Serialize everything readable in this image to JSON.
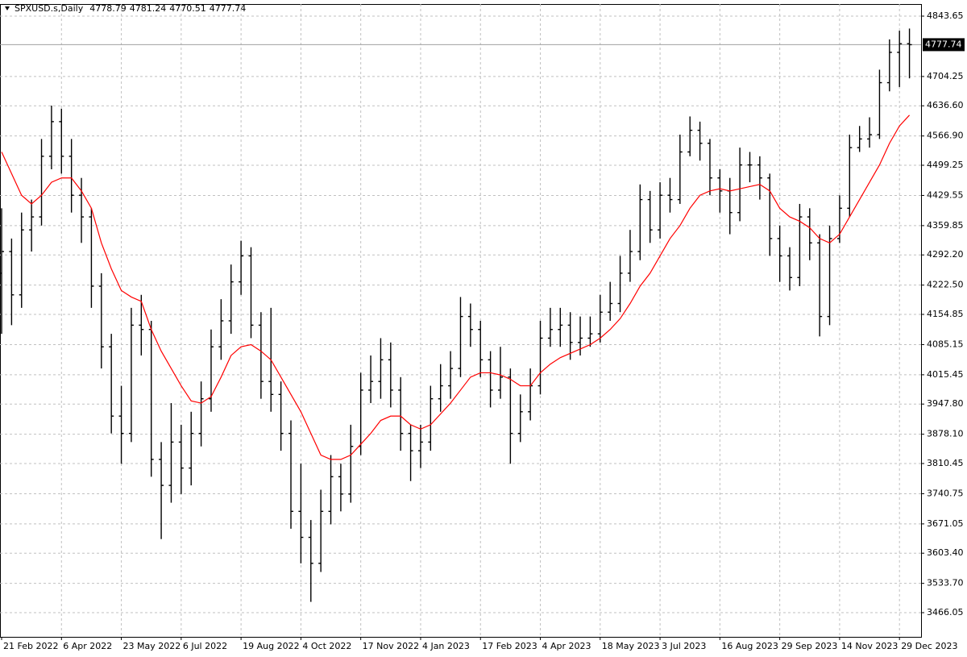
{
  "chart_data": {
    "type": "ohlc",
    "title": "SPXUSD.s,Daily",
    "header_values": [
      4778.79,
      4781.24,
      4770.51,
      4777.74
    ],
    "last_price": 4777.74,
    "bar_color": "#000000",
    "grid": true,
    "categories": [
      "21 Feb 2022",
      null,
      null,
      null,
      null,
      null,
      "6 Apr 2022",
      null,
      null,
      null,
      null,
      null,
      "23 May 2022",
      null,
      null,
      null,
      null,
      null,
      "6 Jul 2022",
      null,
      null,
      null,
      null,
      null,
      "19 Aug 2022",
      null,
      null,
      null,
      null,
      null,
      "4 Oct 2022",
      null,
      null,
      null,
      null,
      null,
      "17 Nov 2022",
      null,
      null,
      null,
      null,
      null,
      "4 Jan 2023",
      null,
      null,
      null,
      null,
      null,
      "17 Feb 2023",
      null,
      null,
      null,
      null,
      null,
      "4 Apr 2023",
      null,
      null,
      null,
      null,
      null,
      "18 May 2023",
      null,
      null,
      null,
      null,
      null,
      "3 Jul 2023",
      null,
      null,
      null,
      null,
      null,
      "16 Aug 2023",
      null,
      null,
      null,
      null,
      null,
      "29 Sep 2023",
      null,
      null,
      null,
      null,
      null,
      "14 Nov 2023",
      null,
      null,
      null,
      null,
      null,
      "29 Dec 2023",
      null
    ],
    "open": [
      4250,
      4300,
      4200,
      4350,
      4380,
      4520,
      4600,
      4520,
      4430,
      4380,
      4220,
      4080,
      3920,
      3880,
      4130,
      4120,
      3820,
      3760,
      3860,
      3800,
      3880,
      3960,
      4080,
      4140,
      4230,
      4290,
      4130,
      4000,
      3970,
      3880,
      3700,
      3640,
      3580,
      3700,
      3780,
      3740,
      3850,
      3980,
      4000,
      4050,
      3980,
      3880,
      3840,
      3860,
      3960,
      3990,
      4030,
      4150,
      4120,
      4050,
      3980,
      4010,
      3880,
      3930,
      3990,
      4100,
      4120,
      4130,
      4090,
      4100,
      4110,
      4160,
      4180,
      4250,
      4300,
      4420,
      4350,
      4430,
      4420,
      4530,
      4580,
      4550,
      4470,
      4440,
      4390,
      4500,
      4500,
      4470,
      4330,
      4290,
      4240,
      4380,
      4320,
      4150,
      4330,
      4400,
      4540,
      4560,
      4570,
      4690,
      4760,
      4780
    ],
    "high": [
      4400,
      4330,
      4390,
      4420,
      4560,
      4637,
      4630,
      4560,
      4470,
      4400,
      4250,
      4110,
      3990,
      4170,
      4200,
      4140,
      3860,
      3950,
      3900,
      3930,
      4000,
      4120,
      4190,
      4270,
      4325,
      4310,
      4160,
      4170,
      4000,
      3910,
      3810,
      3680,
      3750,
      3830,
      3810,
      3900,
      4020,
      4060,
      4100,
      4090,
      4010,
      3900,
      3900,
      3990,
      4040,
      4070,
      4195,
      4180,
      4140,
      4070,
      4080,
      4030,
      3970,
      4030,
      4140,
      4170,
      4170,
      4160,
      4150,
      4150,
      4200,
      4230,
      4290,
      4350,
      4455,
      4440,
      4460,
      4470,
      4570,
      4612,
      4600,
      4560,
      4490,
      4470,
      4540,
      4530,
      4520,
      4480,
      4360,
      4310,
      4410,
      4400,
      4340,
      4360,
      4430,
      4570,
      4590,
      4610,
      4720,
      4790,
      4810,
      4815
    ],
    "low": [
      4110,
      4130,
      4170,
      4300,
      4360,
      4490,
      4480,
      4390,
      4320,
      4170,
      4030,
      3880,
      3810,
      3860,
      4060,
      3780,
      3636,
      3720,
      3740,
      3760,
      3850,
      3930,
      4050,
      4110,
      4200,
      4100,
      3960,
      3930,
      3840,
      3660,
      3580,
      3491,
      3560,
      3670,
      3700,
      3720,
      3830,
      3950,
      3960,
      3940,
      3840,
      3770,
      3800,
      3840,
      3930,
      3960,
      4010,
      4080,
      4010,
      3940,
      3960,
      3810,
      3860,
      3910,
      3970,
      4080,
      4080,
      4050,
      4060,
      4080,
      4090,
      4140,
      4160,
      4230,
      4280,
      4320,
      4330,
      4390,
      4410,
      4520,
      4510,
      4430,
      4390,
      4340,
      4370,
      4460,
      4420,
      4290,
      4230,
      4210,
      4220,
      4280,
      4104,
      4130,
      4320,
      4380,
      4530,
      4540,
      4560,
      4670,
      4680,
      4700
    ],
    "close": [
      4300,
      4200,
      4350,
      4380,
      4520,
      4600,
      4520,
      4430,
      4380,
      4220,
      4080,
      3920,
      3880,
      4130,
      4120,
      3820,
      3760,
      3860,
      3800,
      3880,
      3960,
      4080,
      4140,
      4230,
      4290,
      4130,
      4000,
      3970,
      3880,
      3700,
      3640,
      3580,
      3700,
      3780,
      3740,
      3850,
      3980,
      4000,
      4050,
      3980,
      3880,
      3840,
      3860,
      3960,
      3990,
      4030,
      4150,
      4120,
      4050,
      3980,
      4010,
      3880,
      3930,
      3990,
      4100,
      4120,
      4130,
      4090,
      4100,
      4110,
      4160,
      4180,
      4250,
      4300,
      4420,
      4350,
      4430,
      4420,
      4530,
      4580,
      4550,
      4470,
      4440,
      4390,
      4500,
      4500,
      4470,
      4330,
      4290,
      4240,
      4380,
      4320,
      4150,
      4330,
      4400,
      4540,
      4560,
      4570,
      4690,
      4760,
      4780,
      4777.74
    ],
    "ma": {
      "color": "#ff0000",
      "values": [
        4530,
        4480,
        4430,
        4410,
        4430,
        4460,
        4470,
        4470,
        4440,
        4400,
        4320,
        4260,
        4210,
        4195,
        4185,
        4120,
        4070,
        4030,
        3990,
        3955,
        3950,
        3965,
        4010,
        4060,
        4080,
        4085,
        4070,
        4050,
        4010,
        3970,
        3930,
        3880,
        3830,
        3820,
        3820,
        3830,
        3855,
        3880,
        3910,
        3920,
        3920,
        3900,
        3890,
        3900,
        3925,
        3950,
        3980,
        4010,
        4020,
        4020,
        4015,
        4005,
        3990,
        3990,
        4020,
        4040,
        4055,
        4065,
        4075,
        4085,
        4100,
        4120,
        4145,
        4180,
        4220,
        4250,
        4290,
        4330,
        4360,
        4400,
        4430,
        4440,
        4445,
        4440,
        4445,
        4450,
        4455,
        4440,
        4400,
        4380,
        4370,
        4355,
        4330,
        4320,
        4340,
        4380,
        4420,
        4460,
        4500,
        4550,
        4590,
        4615
      ]
    },
    "ylim": [
      3410.2,
      4871.6
    ],
    "yticks": [
      4843.65,
      4704.25,
      {
        "value": 4636.6,
        "label": "4636.60"
      },
      {
        "value": 4566.9,
        "label": "4566.90"
      },
      4499.25,
      4429.55,
      4359.85,
      {
        "value": 4292.2,
        "label": "4292.20"
      },
      {
        "value": 4222.5,
        "label": "4222.50"
      },
      4154.85,
      4085.15,
      4015.45,
      {
        "value": 3947.8,
        "label": "3947.80"
      },
      {
        "value": 3878.1,
        "label": "3878.10"
      },
      3810.45,
      3740.75,
      3671.05,
      {
        "value": 3603.4,
        "label": "3603.40"
      },
      {
        "value": 3533.7,
        "label": "3533.70"
      },
      3466.05
    ]
  }
}
